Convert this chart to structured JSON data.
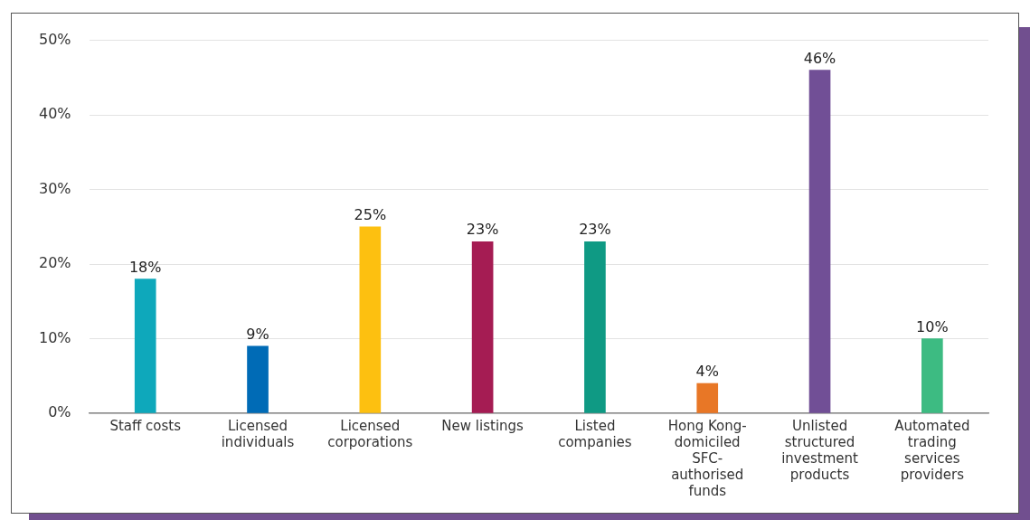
{
  "chart_data": {
    "type": "bar",
    "categories": [
      "Staff costs",
      "Licensed individuals",
      "Licensed corporations",
      "New listings",
      "Listed companies",
      "Hong Kong-domiciled SFC-authorised funds",
      "Unlisted structured investment products",
      "Automated trading services providers"
    ],
    "values": [
      18,
      9,
      25,
      23,
      23,
      4,
      46,
      10
    ],
    "colors": [
      "#0ea8bb",
      "#006bb6",
      "#fdc010",
      "#a51c53",
      "#0f9a84",
      "#e87726",
      "#714f96",
      "#3dbb82"
    ],
    "value_labels": [
      "18%",
      "9%",
      "25%",
      "23%",
      "23%",
      "4%",
      "46%",
      "10%"
    ],
    "ylim": [
      0,
      50
    ],
    "yticks": [
      {
        "value": 0,
        "label": "0%"
      },
      {
        "value": 10,
        "label": "10%"
      },
      {
        "value": 20,
        "label": "20%"
      },
      {
        "value": 30,
        "label": "30%"
      },
      {
        "value": 40,
        "label": "40%"
      },
      {
        "value": 50,
        "label": "50%"
      }
    ],
    "grid": "y",
    "legend": false
  }
}
